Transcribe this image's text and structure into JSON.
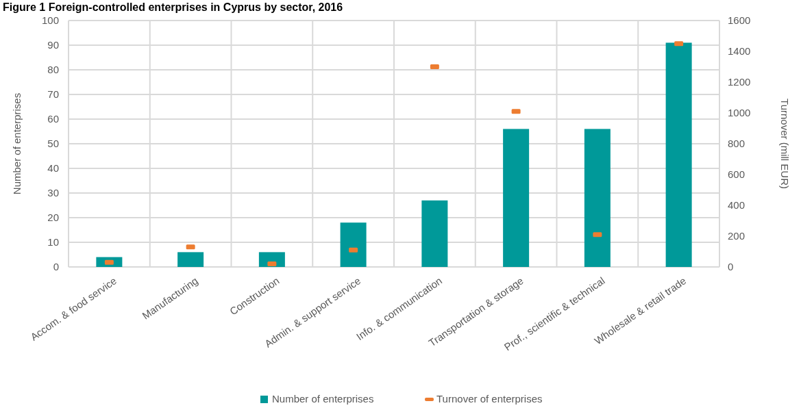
{
  "chart_data": {
    "type": "bar",
    "title": "Figure 1 Foreign-controlled enterprises in Cyprus by sector, 2016",
    "categories": [
      "Accom. & food service",
      "Manufacturing",
      "Construction",
      "Admin. & support service",
      "Info. & communication",
      "Transportation & storage",
      "Prof., scientific & technical",
      "Wholesale & retail trade"
    ],
    "series": [
      {
        "name": "Number of enterprises",
        "color": "#009999",
        "values": [
          4,
          6,
          6,
          18,
          27,
          56,
          56,
          91
        ]
      },
      {
        "name": "Turnover of enterprises",
        "type": "scatter",
        "axis": "y2",
        "color": "#ed7d31",
        "values": [
          30,
          130,
          20,
          110,
          1300,
          1010,
          210,
          1450
        ]
      }
    ],
    "ylabel": "Number of enterprises",
    "y2label": "Turnover (mill EUR)",
    "ylim": [
      0,
      100
    ],
    "yticks": [
      0,
      10,
      20,
      30,
      40,
      50,
      60,
      70,
      80,
      90,
      100
    ],
    "y2lim": [
      0,
      1600
    ],
    "y2ticks": [
      0,
      200,
      400,
      600,
      800,
      1000,
      1200,
      1400,
      1600
    ],
    "grid": true,
    "legend": "bottom"
  }
}
